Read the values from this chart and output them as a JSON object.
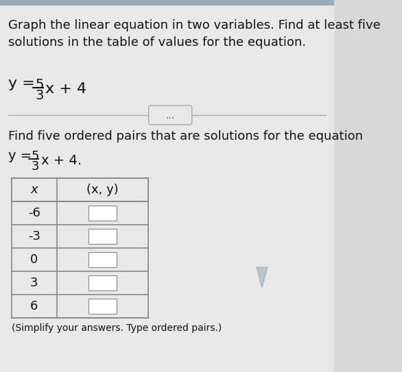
{
  "bg_color": "#d8d8d8",
  "content_bg": "#e8e8e8",
  "title_text": "Graph the linear equation in two variables. Find at least five\nsolutions in the table of values for the equation.",
  "equation_top_numerator": "5",
  "equation_top": "y = —x + 4",
  "equation_top_full": "y = (5/3)x + 4",
  "divider_dots": "...",
  "find_text": "Find five ordered pairs that are solutions for the equation",
  "equation_bottom_full": "y = (5/3)x + 4.",
  "x_values": [
    -6,
    -3,
    0,
    3,
    6
  ],
  "col_x_header": "x",
  "col_xy_header": "(x, y)",
  "table_bg": "#e8e8e8",
  "cell_bg": "#ffffff",
  "border_color": "#888888",
  "text_color": "#111111",
  "font_size_title": 13,
  "font_size_eq": 14,
  "font_size_table": 13,
  "font_size_small": 10
}
